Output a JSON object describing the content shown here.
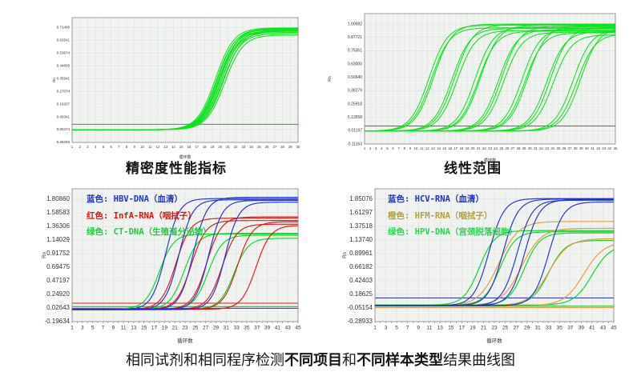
{
  "caption": {
    "part1": "相同试剂和相同程序检测",
    "bold1": "不同项目",
    "part2": "和",
    "bold2": "不同样本类型",
    "part3": "结果曲线图"
  },
  "colors": {
    "plot_background": "#f1f3f1",
    "grid_major": "#dce1dc",
    "grid_minor": "#e9ece9",
    "plot_border": "#858585",
    "curve_green": "#0ce41a",
    "curve_blue": "#1f2fd0",
    "curve_red": "#e01414",
    "curve_orange": "#e8973c"
  },
  "chart_data": [
    {
      "id": "precision",
      "type": "line",
      "title": "精密度性能指标",
      "xlabel": "循环数",
      "ylabel": "Rn",
      "x_range": [
        1,
        30
      ],
      "x_ticks": [
        1,
        2,
        3,
        4,
        5,
        6,
        7,
        8,
        9,
        10,
        11,
        12,
        13,
        14,
        15,
        16,
        17,
        18,
        19,
        20,
        21,
        22,
        23,
        24,
        25,
        26,
        27,
        28,
        29,
        30
      ],
      "x_minor_step": null,
      "y_range": [
        -0.08393,
        0.7835
      ],
      "y_ticks": [
        "0.71408",
        "0.62541",
        "0.53674",
        "0.44808",
        "0.35941",
        "0.27074",
        "0.18207",
        "0.09341",
        "0.00474",
        "-0.08393"
      ],
      "grid": true,
      "legend": [],
      "thresholds": [
        {
          "y": 0.042,
          "c": "#2f9e44"
        }
      ],
      "series": [
        {
          "c": "#0ce41a",
          "ct": 19.4,
          "k": 0.85,
          "b": 0.004,
          "p": 0.712
        },
        {
          "c": "#0ce41a",
          "ct": 19.55,
          "k": 0.85,
          "b": 0.004,
          "p": 0.7
        },
        {
          "c": "#0ce41a",
          "ct": 19.65,
          "k": 0.85,
          "b": 0.004,
          "p": 0.707
        },
        {
          "c": "#0ce41a",
          "ct": 19.75,
          "k": 0.85,
          "b": 0.004,
          "p": 0.692
        },
        {
          "c": "#0ce41a",
          "ct": 19.85,
          "k": 0.85,
          "b": 0.004,
          "p": 0.703
        },
        {
          "c": "#0ce41a",
          "ct": 19.95,
          "k": 0.85,
          "b": 0.004,
          "p": 0.688
        },
        {
          "c": "#0ce41a",
          "ct": 20.0,
          "k": 0.85,
          "b": 0.004,
          "p": 0.71
        },
        {
          "c": "#0ce41a",
          "ct": 20.1,
          "k": 0.85,
          "b": 0.004,
          "p": 0.681
        },
        {
          "c": "#0ce41a",
          "ct": 20.2,
          "k": 0.85,
          "b": 0.004,
          "p": 0.697
        },
        {
          "c": "#0ce41a",
          "ct": 20.3,
          "k": 0.85,
          "b": 0.004,
          "p": 0.672
        },
        {
          "c": "#0ce41a",
          "ct": 20.45,
          "k": 0.85,
          "b": 0.004,
          "p": 0.69
        },
        {
          "c": "#0ce41a",
          "ct": 20.6,
          "k": 0.85,
          "b": 0.004,
          "p": 0.662
        }
      ]
    },
    {
      "id": "linear-range",
      "type": "line",
      "title": "线性范围",
      "xlabel": "循环数",
      "ylabel": "Rn",
      "x_range": [
        1,
        45
      ],
      "x_ticks": [
        1,
        2,
        3,
        4,
        5,
        6,
        7,
        8,
        9,
        10,
        11,
        12,
        13,
        14,
        15,
        16,
        17,
        18,
        19,
        20,
        21,
        22,
        23,
        24,
        25,
        26,
        27,
        28,
        29,
        30,
        31,
        32,
        33,
        34,
        35,
        36,
        37,
        38,
        39,
        40,
        41,
        42,
        43,
        44,
        45
      ],
      "x_minor_step": null,
      "y_range": [
        -0.11163,
        1.097
      ],
      "y_ticks": [
        "1.00082",
        "0.87721",
        "0.75361",
        "0.63000",
        "0.50640",
        "0.38279",
        "0.25918",
        "0.13558",
        "0.01197",
        "-0.11163"
      ],
      "grid": true,
      "legend": [],
      "thresholds": [
        {
          "y": 0.055,
          "c": "#18923c"
        }
      ],
      "series": [
        {
          "c": "#0ce41a",
          "ct": 12.3,
          "k": 0.62,
          "b": 0.008,
          "p": 0.99
        },
        {
          "c": "#0ce41a",
          "ct": 12.7,
          "k": 0.62,
          "b": 0.008,
          "p": 0.965
        },
        {
          "c": "#0ce41a",
          "ct": 13.1,
          "k": 0.62,
          "b": 0.008,
          "p": 1.0
        },
        {
          "c": "#0ce41a",
          "ct": 16.3,
          "k": 0.62,
          "b": 0.008,
          "p": 0.96
        },
        {
          "c": "#0ce41a",
          "ct": 16.8,
          "k": 0.62,
          "b": 0.008,
          "p": 0.995
        },
        {
          "c": "#0ce41a",
          "ct": 17.2,
          "k": 0.62,
          "b": 0.008,
          "p": 0.94
        },
        {
          "c": "#0ce41a",
          "ct": 20.4,
          "k": 0.62,
          "b": 0.008,
          "p": 0.975
        },
        {
          "c": "#0ce41a",
          "ct": 20.9,
          "k": 0.62,
          "b": 0.008,
          "p": 0.935
        },
        {
          "c": "#0ce41a",
          "ct": 21.3,
          "k": 0.62,
          "b": 0.008,
          "p": 0.99
        },
        {
          "c": "#0ce41a",
          "ct": 24.5,
          "k": 0.62,
          "b": 0.008,
          "p": 0.95
        },
        {
          "c": "#0ce41a",
          "ct": 25.0,
          "k": 0.62,
          "b": 0.008,
          "p": 0.98
        },
        {
          "c": "#0ce41a",
          "ct": 25.4,
          "k": 0.62,
          "b": 0.008,
          "p": 0.925
        },
        {
          "c": "#0ce41a",
          "ct": 28.6,
          "k": 0.62,
          "b": 0.008,
          "p": 0.96
        },
        {
          "c": "#0ce41a",
          "ct": 29.1,
          "k": 0.62,
          "b": 0.008,
          "p": 0.92
        },
        {
          "c": "#0ce41a",
          "ct": 29.6,
          "k": 0.62,
          "b": 0.008,
          "p": 0.985
        },
        {
          "c": "#0ce41a",
          "ct": 33.0,
          "k": 0.62,
          "b": 0.008,
          "p": 0.93
        },
        {
          "c": "#0ce41a",
          "ct": 33.6,
          "k": 0.62,
          "b": 0.008,
          "p": 0.97
        },
        {
          "c": "#0ce41a",
          "ct": 34.1,
          "k": 0.62,
          "b": 0.008,
          "p": 0.9
        },
        {
          "c": "#0ce41a",
          "ct": 37.6,
          "k": 0.62,
          "b": 0.008,
          "p": 0.95
        },
        {
          "c": "#0ce41a",
          "ct": 38.2,
          "k": 0.62,
          "b": 0.008,
          "p": 0.91
        },
        {
          "c": "#0ce41a",
          "ct": 38.9,
          "k": 0.62,
          "b": 0.008,
          "p": 0.97
        }
      ]
    },
    {
      "id": "different-items",
      "type": "line",
      "title": "",
      "xlabel": "循环数",
      "ylabel": "Rn",
      "x_range": [
        1,
        45
      ],
      "x_ticks": [
        1,
        3,
        5,
        7,
        9,
        11,
        13,
        15,
        17,
        19,
        21,
        23,
        25,
        27,
        29,
        31,
        33,
        35,
        37,
        39,
        41,
        43,
        45
      ],
      "x_minor_step": 1,
      "y_range": [
        -0.19634,
        1.98
      ],
      "y_ticks": [
        "1.80860",
        "1.58583",
        "1.36306",
        "1.14029",
        "0.91752",
        "0.69475",
        "0.47197",
        "0.24920",
        "0.02643",
        "-0.19634"
      ],
      "grid": true,
      "legend": [
        {
          "text": "蓝色: HBV-DNA（血清）",
          "color": "#2233cc"
        },
        {
          "text": "红色: InfA-RNA（咽拭子）",
          "color": "#e01414"
        },
        {
          "text": "绿色: CT-DNA（生殖道分泌物）",
          "color": "#1fcc3f"
        }
      ],
      "thresholds": [
        {
          "y": 0.105,
          "c": "#e01414"
        },
        {
          "y": 0.05,
          "c": "#00b31a"
        },
        {
          "y": 0.022,
          "c": "#1f2fd0"
        }
      ],
      "series": [
        {
          "c": "#00d81e",
          "ct": 18.0,
          "k": 0.72,
          "b": 0.01,
          "p": 1.24
        },
        {
          "c": "#00d81e",
          "ct": 22.8,
          "k": 0.72,
          "b": 0.01,
          "p": 1.25
        },
        {
          "c": "#00d81e",
          "ct": 27.5,
          "k": 0.72,
          "b": 0.01,
          "p": 1.22
        },
        {
          "c": "#00d81e",
          "ct": 32.5,
          "k": 0.72,
          "b": 0.01,
          "p": 1.17
        },
        {
          "c": "#e01414",
          "ct": 21.2,
          "k": 0.7,
          "b": 0.005,
          "p": 1.5
        },
        {
          "c": "#e01414",
          "ct": 24.2,
          "k": 0.7,
          "b": 0.005,
          "p": 1.46
        },
        {
          "c": "#e01414",
          "ct": 27.2,
          "k": 0.7,
          "b": 0.005,
          "p": 1.52
        },
        {
          "c": "#e01414",
          "ct": 30.2,
          "k": 0.7,
          "b": 0.005,
          "p": 1.4
        },
        {
          "c": "#e01414",
          "ct": 33.2,
          "k": 0.7,
          "b": 0.005,
          "p": 1.44
        },
        {
          "c": "#e01414",
          "ct": 36.8,
          "k": 0.7,
          "b": 0.005,
          "p": 1.38
        },
        {
          "c": "#1f2fd0",
          "ct": 19.2,
          "k": 0.75,
          "b": 0.0,
          "p": 1.82
        },
        {
          "c": "#1f2fd0",
          "ct": 21.8,
          "k": 0.75,
          "b": 0.0,
          "p": 1.8
        },
        {
          "c": "#1f2fd0",
          "ct": 24.6,
          "k": 0.75,
          "b": 0.0,
          "p": 1.84
        },
        {
          "c": "#1f2fd0",
          "ct": 27.6,
          "k": 0.75,
          "b": 0.0,
          "p": 1.79
        },
        {
          "c": "#1f2fd0",
          "ct": 30.8,
          "k": 0.75,
          "b": 0.0,
          "p": 1.76
        }
      ]
    },
    {
      "id": "different-samples",
      "type": "line",
      "title": "",
      "xlabel": "循环数",
      "ylabel": "Rn",
      "x_range": [
        1,
        45
      ],
      "x_ticks": [
        1,
        3,
        5,
        7,
        9,
        11,
        13,
        15,
        17,
        19,
        21,
        23,
        25,
        27,
        29,
        31,
        33,
        35,
        37,
        39,
        41,
        43,
        45
      ],
      "x_minor_step": 1,
      "y_range": [
        -0.28933,
        2.03
      ],
      "y_ticks": [
        "1.85076",
        "1.61297",
        "1.37518",
        "1.13740",
        "0.89961",
        "0.66182",
        "0.42403",
        "0.18625",
        "-0.05154",
        "-0.28933"
      ],
      "grid": true,
      "legend": [
        {
          "text": "蓝色: HCV-RNA（血清）",
          "color": "#2233cc"
        },
        {
          "text": "橙色: HFM-RNA（咽拭子）",
          "color": "#b0a040"
        },
        {
          "text": "绿色: HPV-DNA（宫颈脱落细胞）",
          "color": "#2bd455"
        }
      ],
      "thresholds": [
        {
          "y": 0.125,
          "c": "#2222cc"
        },
        {
          "y": -0.02,
          "c": "#00b31a"
        },
        {
          "y": -0.045,
          "c": "#e8973c"
        }
      ],
      "series": [
        {
          "c": "#00d81e",
          "ct": 20.2,
          "k": 0.7,
          "b": 0.0,
          "p": 1.3
        },
        {
          "c": "#00d81e",
          "ct": 24.0,
          "k": 0.7,
          "b": 0.0,
          "p": 1.28
        },
        {
          "c": "#00d81e",
          "ct": 28.5,
          "k": 0.7,
          "b": 0.0,
          "p": 1.26
        },
        {
          "c": "#00d81e",
          "ct": 33.0,
          "k": 0.65,
          "b": 0.0,
          "p": 1.13
        },
        {
          "c": "#00d81e",
          "ct": 41.0,
          "k": 0.6,
          "b": 0.0,
          "p": 1.05
        },
        {
          "c": "#e8973c",
          "ct": 23.8,
          "k": 0.55,
          "b": -0.01,
          "p": 1.46
        },
        {
          "c": "#e8973c",
          "ct": 28.0,
          "k": 0.55,
          "b": -0.01,
          "p": 1.34
        },
        {
          "c": "#e8973c",
          "ct": 33.0,
          "k": 0.55,
          "b": -0.01,
          "p": 1.16
        },
        {
          "c": "#e8973c",
          "ct": 39.5,
          "k": 0.55,
          "b": -0.01,
          "p": 1.1
        },
        {
          "c": "#1f2fd0",
          "ct": 22.0,
          "k": 0.72,
          "b": -0.01,
          "p": 1.86
        },
        {
          "c": "#1f2fd0",
          "ct": 24.6,
          "k": 0.72,
          "b": -0.01,
          "p": 1.85
        },
        {
          "c": "#1f2fd0",
          "ct": 27.2,
          "k": 0.72,
          "b": -0.01,
          "p": 1.83
        },
        {
          "c": "#1f2fd0",
          "ct": 28.6,
          "k": 0.72,
          "b": -0.01,
          "p": 1.84
        },
        {
          "c": "#1f2fd0",
          "ct": 33.0,
          "k": 0.72,
          "b": -0.01,
          "p": 1.8
        }
      ]
    }
  ]
}
